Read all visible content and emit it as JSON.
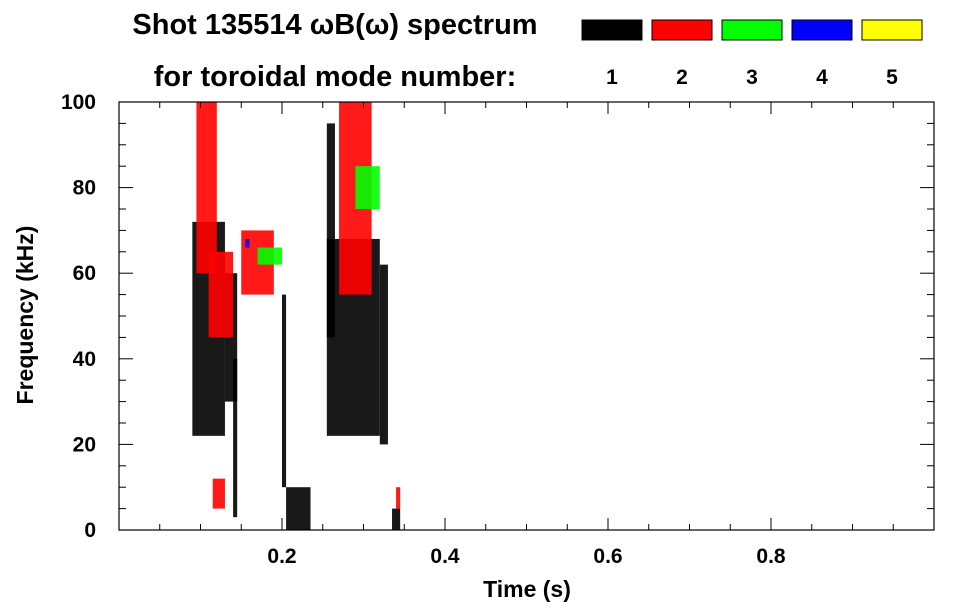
{
  "chart_data": {
    "type": "heatmap",
    "title": "Shot 135514 ωB(ω) spectrum",
    "subtitle": "for toroidal mode number:",
    "xlabel": "Time (s)",
    "ylabel": "Frequency (kHz)",
    "xlim": [
      0.0,
      1.0
    ],
    "ylim": [
      0,
      100
    ],
    "x_ticks": [
      0.2,
      0.4,
      0.6,
      0.8
    ],
    "x_tick_labels": [
      "0.2",
      "0.4",
      "0.6",
      "0.8"
    ],
    "y_ticks": [
      0,
      20,
      40,
      60,
      80,
      100
    ],
    "y_tick_labels": [
      "0",
      "20",
      "40",
      "60",
      "80",
      "100"
    ],
    "grid": false,
    "legend_placement": "top-right",
    "legend": [
      {
        "label": "1",
        "color": "#000000"
      },
      {
        "label": "2",
        "color": "#ff0000"
      },
      {
        "label": "3",
        "color": "#00ff00"
      },
      {
        "label": "4",
        "color": "#0000ff"
      },
      {
        "label": "5",
        "color": "#ffff00"
      }
    ],
    "series": [
      {
        "mode": "1",
        "color": "#000000",
        "regions": [
          {
            "t": [
              0.09,
              0.13
            ],
            "f": [
              22,
              72
            ]
          },
          {
            "t": [
              0.13,
              0.145
            ],
            "f": [
              30,
              60
            ]
          },
          {
            "t": [
              0.14,
              0.145
            ],
            "f": [
              3,
              40
            ]
          },
          {
            "t": [
              0.2,
              0.205
            ],
            "f": [
              10,
              55
            ]
          },
          {
            "t": [
              0.205,
              0.235
            ],
            "f": [
              0,
              10
            ]
          },
          {
            "t": [
              0.255,
              0.32
            ],
            "f": [
              22,
              68
            ]
          },
          {
            "t": [
              0.255,
              0.265
            ],
            "f": [
              45,
              95
            ]
          },
          {
            "t": [
              0.32,
              0.33
            ],
            "f": [
              20,
              62
            ]
          },
          {
            "t": [
              0.335,
              0.345
            ],
            "f": [
              0,
              5
            ]
          }
        ]
      },
      {
        "mode": "2",
        "color": "#ff0000",
        "regions": [
          {
            "t": [
              0.095,
              0.12
            ],
            "f": [
              60,
              100
            ]
          },
          {
            "t": [
              0.11,
              0.14
            ],
            "f": [
              45,
              65
            ]
          },
          {
            "t": [
              0.115,
              0.13
            ],
            "f": [
              5,
              12
            ]
          },
          {
            "t": [
              0.15,
              0.19
            ],
            "f": [
              55,
              70
            ]
          },
          {
            "t": [
              0.27,
              0.31
            ],
            "f": [
              55,
              100
            ]
          },
          {
            "t": [
              0.34,
              0.345
            ],
            "f": [
              5,
              10
            ]
          }
        ]
      },
      {
        "mode": "3",
        "color": "#00ff00",
        "regions": [
          {
            "t": [
              0.17,
              0.2
            ],
            "f": [
              62,
              66
            ]
          },
          {
            "t": [
              0.29,
              0.32
            ],
            "f": [
              75,
              85
            ]
          }
        ]
      },
      {
        "mode": "4",
        "color": "#0000ff",
        "regions": [
          {
            "t": [
              0.155,
              0.16
            ],
            "f": [
              66,
              68
            ]
          }
        ]
      },
      {
        "mode": "5",
        "color": "#ffff00",
        "regions": []
      }
    ]
  }
}
